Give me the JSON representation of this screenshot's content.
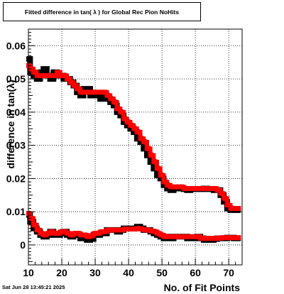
{
  "title": "Fitted difference in tan( λ ) for Global Rec Pion NoHits",
  "timestamp": "Sat Jun 28 13:45:21 2025",
  "chart_data": {
    "type": "line",
    "xlabel": "No. of Fit Points",
    "ylabel": "difference in tan(λ)",
    "xlim": [
      10,
      74
    ],
    "ylim": [
      -0.006,
      0.065
    ],
    "x_ticks": [
      10,
      20,
      30,
      40,
      50,
      60,
      70
    ],
    "x_tick_labels": [
      "10",
      "20",
      "30",
      "40",
      "50",
      "60",
      "70"
    ],
    "y_ticks": [
      0,
      0.01,
      0.02,
      0.03,
      0.04,
      0.05,
      0.06
    ],
    "y_tick_labels": [
      "0",
      "0.01",
      "0.02",
      "0.03",
      "0.04",
      "0.05",
      "0.06"
    ],
    "grid": true,
    "colors": {
      "black_series": "#000000",
      "red_series": "#ff0000"
    },
    "series": [
      {
        "curve": "upper",
        "color": "#000000",
        "x": [
          10,
          11,
          12,
          13,
          14,
          15,
          16,
          17,
          18,
          19,
          20,
          21,
          22,
          23,
          24,
          25,
          26,
          27,
          28,
          29,
          30,
          31,
          32,
          33,
          34,
          35,
          36,
          37,
          38,
          39,
          40,
          41,
          42,
          43,
          44,
          45,
          46,
          47,
          48,
          49,
          50,
          51,
          52,
          53,
          54,
          55,
          56,
          57,
          58,
          59,
          60,
          61,
          62,
          63,
          64,
          65,
          66,
          67,
          68,
          69,
          70,
          71,
          72,
          73
        ],
        "y": [
          0.056,
          0.052,
          0.051,
          0.05,
          0.052,
          0.053,
          0.051,
          0.05,
          0.052,
          0.051,
          0.051,
          0.05,
          0.05,
          0.049,
          0.048,
          0.046,
          0.045,
          0.047,
          0.047,
          0.045,
          0.045,
          0.045,
          0.044,
          0.045,
          0.044,
          0.043,
          0.042,
          0.04,
          0.039,
          0.037,
          0.036,
          0.035,
          0.034,
          0.032,
          0.031,
          0.029,
          0.027,
          0.025,
          0.023,
          0.021,
          0.02,
          0.018,
          0.017,
          0.0165,
          0.017,
          0.017,
          0.017,
          0.0168,
          0.0165,
          0.0168,
          0.0168,
          0.0168,
          0.0168,
          0.017,
          0.0168,
          0.0168,
          0.0165,
          0.0165,
          0.015,
          0.013,
          0.011,
          0.0105,
          0.0105,
          0.0105
        ]
      },
      {
        "curve": "upper",
        "color": "#ff0000",
        "x": [
          10,
          11,
          12,
          13,
          14,
          15,
          16,
          17,
          18,
          19,
          20,
          21,
          22,
          23,
          24,
          25,
          26,
          27,
          28,
          29,
          30,
          31,
          32,
          33,
          34,
          35,
          36,
          37,
          38,
          39,
          40,
          41,
          42,
          43,
          44,
          45,
          46,
          47,
          48,
          49,
          50,
          51,
          52,
          53,
          54,
          55,
          56,
          57,
          58,
          59,
          60,
          61,
          62,
          63,
          64,
          65,
          66,
          67,
          68,
          69,
          70,
          71,
          72,
          73
        ],
        "y": [
          0.054,
          0.053,
          0.052,
          0.051,
          0.051,
          0.051,
          0.051,
          0.051,
          0.051,
          0.052,
          0.051,
          0.051,
          0.05,
          0.049,
          0.048,
          0.047,
          0.046,
          0.046,
          0.046,
          0.046,
          0.046,
          0.046,
          0.046,
          0.046,
          0.045,
          0.044,
          0.043,
          0.041,
          0.04,
          0.038,
          0.037,
          0.036,
          0.035,
          0.034,
          0.032,
          0.031,
          0.029,
          0.027,
          0.025,
          0.023,
          0.021,
          0.019,
          0.018,
          0.0175,
          0.0175,
          0.0175,
          0.0175,
          0.017,
          0.017,
          0.017,
          0.017,
          0.017,
          0.017,
          0.017,
          0.017,
          0.017,
          0.017,
          0.0165,
          0.0155,
          0.014,
          0.012,
          0.011,
          0.011,
          0.011
        ]
      },
      {
        "curve": "lower",
        "color": "#000000",
        "x": [
          10,
          11,
          12,
          13,
          14,
          15,
          16,
          17,
          18,
          19,
          20,
          21,
          22,
          23,
          24,
          25,
          26,
          27,
          28,
          29,
          30,
          31,
          32,
          33,
          34,
          35,
          36,
          37,
          38,
          39,
          40,
          41,
          42,
          43,
          44,
          45,
          46,
          47,
          48,
          49,
          50,
          51,
          52,
          53,
          54,
          55,
          56,
          57,
          58,
          59,
          60,
          61,
          62,
          63,
          64,
          65,
          66,
          67,
          68,
          69,
          70,
          71,
          72,
          73
        ],
        "y": [
          0.009,
          0.007,
          0.005,
          0.004,
          0.003,
          0.0025,
          0.003,
          0.004,
          0.003,
          0.003,
          0.0035,
          0.004,
          0.003,
          0.0025,
          0.003,
          0.003,
          0.002,
          0.0025,
          0.0015,
          0.0018,
          0.003,
          0.003,
          0.0035,
          0.0035,
          0.0045,
          0.0045,
          0.0045,
          0.004,
          0.0045,
          0.005,
          0.005,
          0.005,
          0.005,
          0.0055,
          0.005,
          0.0045,
          0.0045,
          0.004,
          0.0035,
          0.003,
          0.0025,
          0.002,
          0.0025,
          0.002,
          0.0025,
          0.0025,
          0.0025,
          0.0025,
          0.002,
          0.002,
          0.002,
          0.0025,
          0.002,
          0.0015,
          0.0015,
          0.0015,
          0.0018,
          0.002,
          0.002,
          0.002,
          0.0022,
          0.0022,
          0.002,
          0.002
        ]
      },
      {
        "curve": "lower",
        "color": "#ff0000",
        "x": [
          10,
          11,
          12,
          13,
          14,
          15,
          16,
          17,
          18,
          19,
          20,
          21,
          22,
          23,
          24,
          25,
          26,
          27,
          28,
          29,
          30,
          31,
          32,
          33,
          34,
          35,
          36,
          37,
          38,
          39,
          40,
          41,
          42,
          43,
          44,
          45,
          46,
          47,
          48,
          49,
          50,
          51,
          52,
          53,
          54,
          55,
          56,
          57,
          58,
          59,
          60,
          61,
          62,
          63,
          64,
          65,
          66,
          67,
          68,
          69,
          70,
          71,
          72,
          73
        ],
        "y": [
          0.0095,
          0.008,
          0.006,
          0.0045,
          0.0035,
          0.003,
          0.0035,
          0.004,
          0.0035,
          0.0035,
          0.004,
          0.004,
          0.0035,
          0.003,
          0.0035,
          0.0035,
          0.003,
          0.003,
          0.0025,
          0.0028,
          0.0035,
          0.0035,
          0.004,
          0.004,
          0.0045,
          0.0045,
          0.0045,
          0.0045,
          0.0045,
          0.0048,
          0.0048,
          0.0048,
          0.0048,
          0.005,
          0.0048,
          0.0045,
          0.0045,
          0.0042,
          0.004,
          0.0035,
          0.003,
          0.0025,
          0.0025,
          0.0025,
          0.0025,
          0.0025,
          0.0025,
          0.0025,
          0.0025,
          0.0025,
          0.0025,
          0.0025,
          0.002,
          0.002,
          0.002,
          0.002,
          0.002,
          0.002,
          0.0022,
          0.0022,
          0.0022,
          0.0022,
          0.0022,
          0.0022
        ]
      }
    ]
  }
}
